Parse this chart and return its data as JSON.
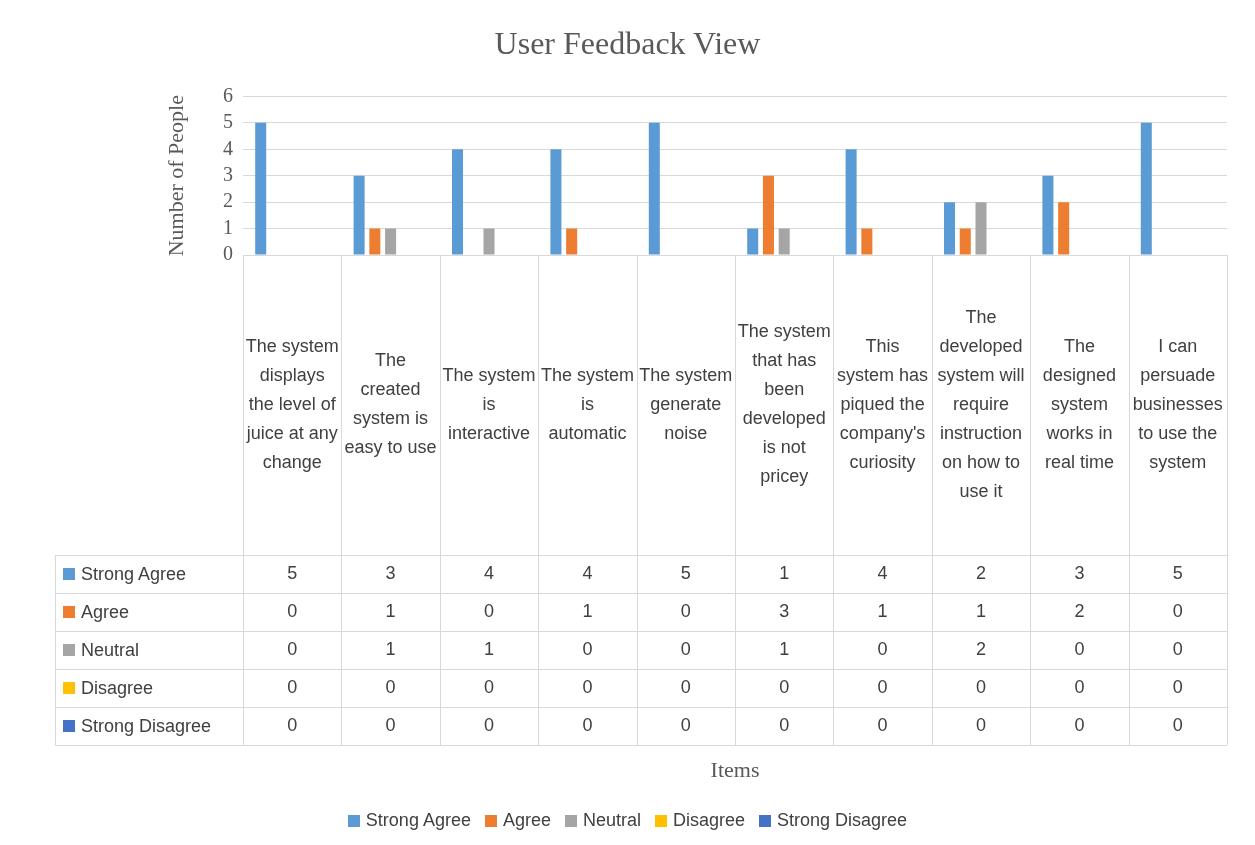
{
  "chart_data": {
    "type": "bar",
    "title": "User Feedback View",
    "annotations": [
      "Items"
    ],
    "ylabel": "Number of People",
    "categories": [
      "The system displays the level of juice at any change",
      "The created system is easy to use",
      "The system is interactive",
      "The system is automatic",
      "The system generate noise",
      "The system that has been developed is not pricey",
      "This system has piqued the company's curiosity",
      "The developed system will require instruction on how to use it",
      "The designed system works in real time",
      "I can persuade businesses to use the system"
    ],
    "series": [
      {
        "name": "Strong Agree",
        "color": "#5b9bd5",
        "values": [
          5,
          3,
          4,
          4,
          5,
          1,
          4,
          2,
          3,
          5
        ]
      },
      {
        "name": "Agree",
        "color": "#ed7d31",
        "values": [
          0,
          1,
          0,
          1,
          0,
          3,
          1,
          1,
          2,
          0
        ]
      },
      {
        "name": "Neutral",
        "color": "#a5a5a5",
        "values": [
          0,
          1,
          1,
          0,
          0,
          1,
          0,
          2,
          0,
          0
        ]
      },
      {
        "name": "Disagree",
        "color": "#ffc000",
        "values": [
          0,
          0,
          0,
          0,
          0,
          0,
          0,
          0,
          0,
          0
        ]
      },
      {
        "name": "Strong Disagree",
        "color": "#4472c4",
        "values": [
          0,
          0,
          0,
          0,
          0,
          0,
          0,
          0,
          0,
          0
        ]
      }
    ],
    "ylim": [
      0,
      6
    ],
    "yticks": [
      0,
      1,
      2,
      3,
      4,
      5,
      6
    ],
    "grid": "y",
    "legend": "bottom",
    "data_labels": true
  }
}
